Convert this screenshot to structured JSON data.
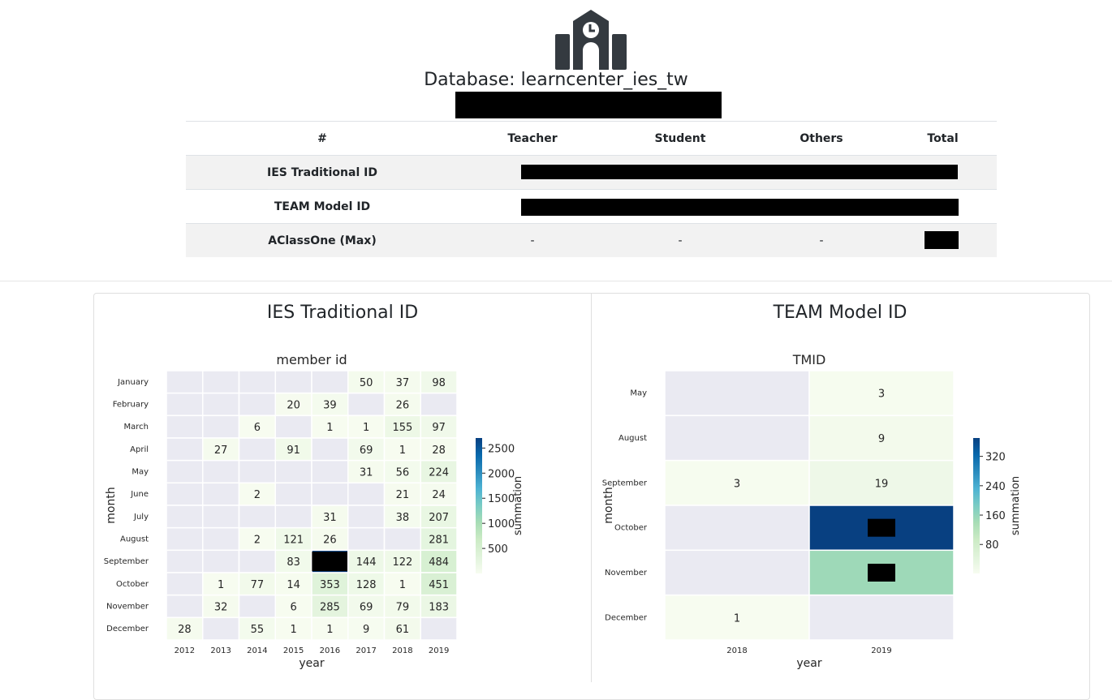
{
  "header": {
    "icon": "school-clock-icon",
    "db_title": "Database: learncenter_ies_tw"
  },
  "table": {
    "columns": [
      "#",
      "Teacher",
      "Student",
      "Others",
      "Total"
    ],
    "rows": [
      {
        "label": "IES Traditional ID",
        "teacher": "",
        "student": "",
        "others": "",
        "total": ""
      },
      {
        "label": "TEAM Model ID",
        "teacher": "",
        "student": "",
        "others": "",
        "total": ""
      },
      {
        "label": "AClassOne (Max)",
        "teacher": "-",
        "student": "-",
        "others": "-",
        "total": ""
      }
    ]
  },
  "panels": {
    "left_title": "IES Traditional ID",
    "right_title": "TEAM Model ID"
  },
  "chart_data": [
    {
      "type": "heatmap",
      "title": "member id",
      "xlabel": "year",
      "ylabel": "month",
      "colorbar_label": "summation",
      "x": [
        "2012",
        "2013",
        "2014",
        "2015",
        "2016",
        "2017",
        "2018",
        "2019"
      ],
      "y": [
        "January",
        "February",
        "March",
        "April",
        "May",
        "June",
        "July",
        "August",
        "September",
        "October",
        "November",
        "December"
      ],
      "values": [
        [
          null,
          null,
          null,
          null,
          null,
          50,
          37,
          98
        ],
        [
          null,
          null,
          null,
          20,
          39,
          null,
          26,
          null
        ],
        [
          null,
          null,
          6,
          null,
          1,
          1,
          155,
          97
        ],
        [
          null,
          27,
          null,
          91,
          null,
          69,
          1,
          28
        ],
        [
          null,
          null,
          null,
          null,
          null,
          31,
          56,
          224
        ],
        [
          null,
          null,
          2,
          null,
          null,
          null,
          21,
          24
        ],
        [
          null,
          null,
          null,
          null,
          31,
          null,
          38,
          207
        ],
        [
          null,
          null,
          2,
          121,
          26,
          null,
          null,
          281
        ],
        [
          null,
          null,
          null,
          83,
          2700,
          144,
          122,
          484
        ],
        [
          null,
          1,
          77,
          14,
          353,
          128,
          1,
          451
        ],
        [
          null,
          32,
          null,
          6,
          285,
          69,
          79,
          183
        ],
        [
          28,
          null,
          55,
          1,
          1,
          9,
          61,
          null
        ]
      ],
      "redacted_cells": [
        [
          8,
          4
        ]
      ],
      "colorbar_ticks": [
        500,
        1000,
        1500,
        2000,
        2500
      ],
      "colorbar_range": [
        1,
        2700
      ]
    },
    {
      "type": "heatmap",
      "title": "TMID",
      "xlabel": "year",
      "ylabel": "month",
      "colorbar_label": "summation",
      "x": [
        "2018",
        "2019"
      ],
      "y": [
        "May",
        "August",
        "September",
        "October",
        "November",
        "December"
      ],
      "values": [
        [
          null,
          3
        ],
        [
          null,
          9
        ],
        [
          3,
          19
        ],
        [
          null,
          370
        ],
        [
          null,
          150
        ],
        [
          1,
          null
        ]
      ],
      "redacted_cells": [
        [
          3,
          1
        ],
        [
          4,
          1
        ]
      ],
      "colorbar_ticks": [
        80,
        160,
        240,
        320
      ],
      "colorbar_range": [
        1,
        370
      ]
    }
  ],
  "colors": {
    "empty_cell": "#eaeaf2",
    "scale": [
      "#f7fcf0",
      "#e0f3db",
      "#ccebc5",
      "#a8ddb5",
      "#7bccc4",
      "#4eb3d3",
      "#2b8cbe",
      "#0868ac",
      "#084081"
    ],
    "redaction": "#000000"
  }
}
